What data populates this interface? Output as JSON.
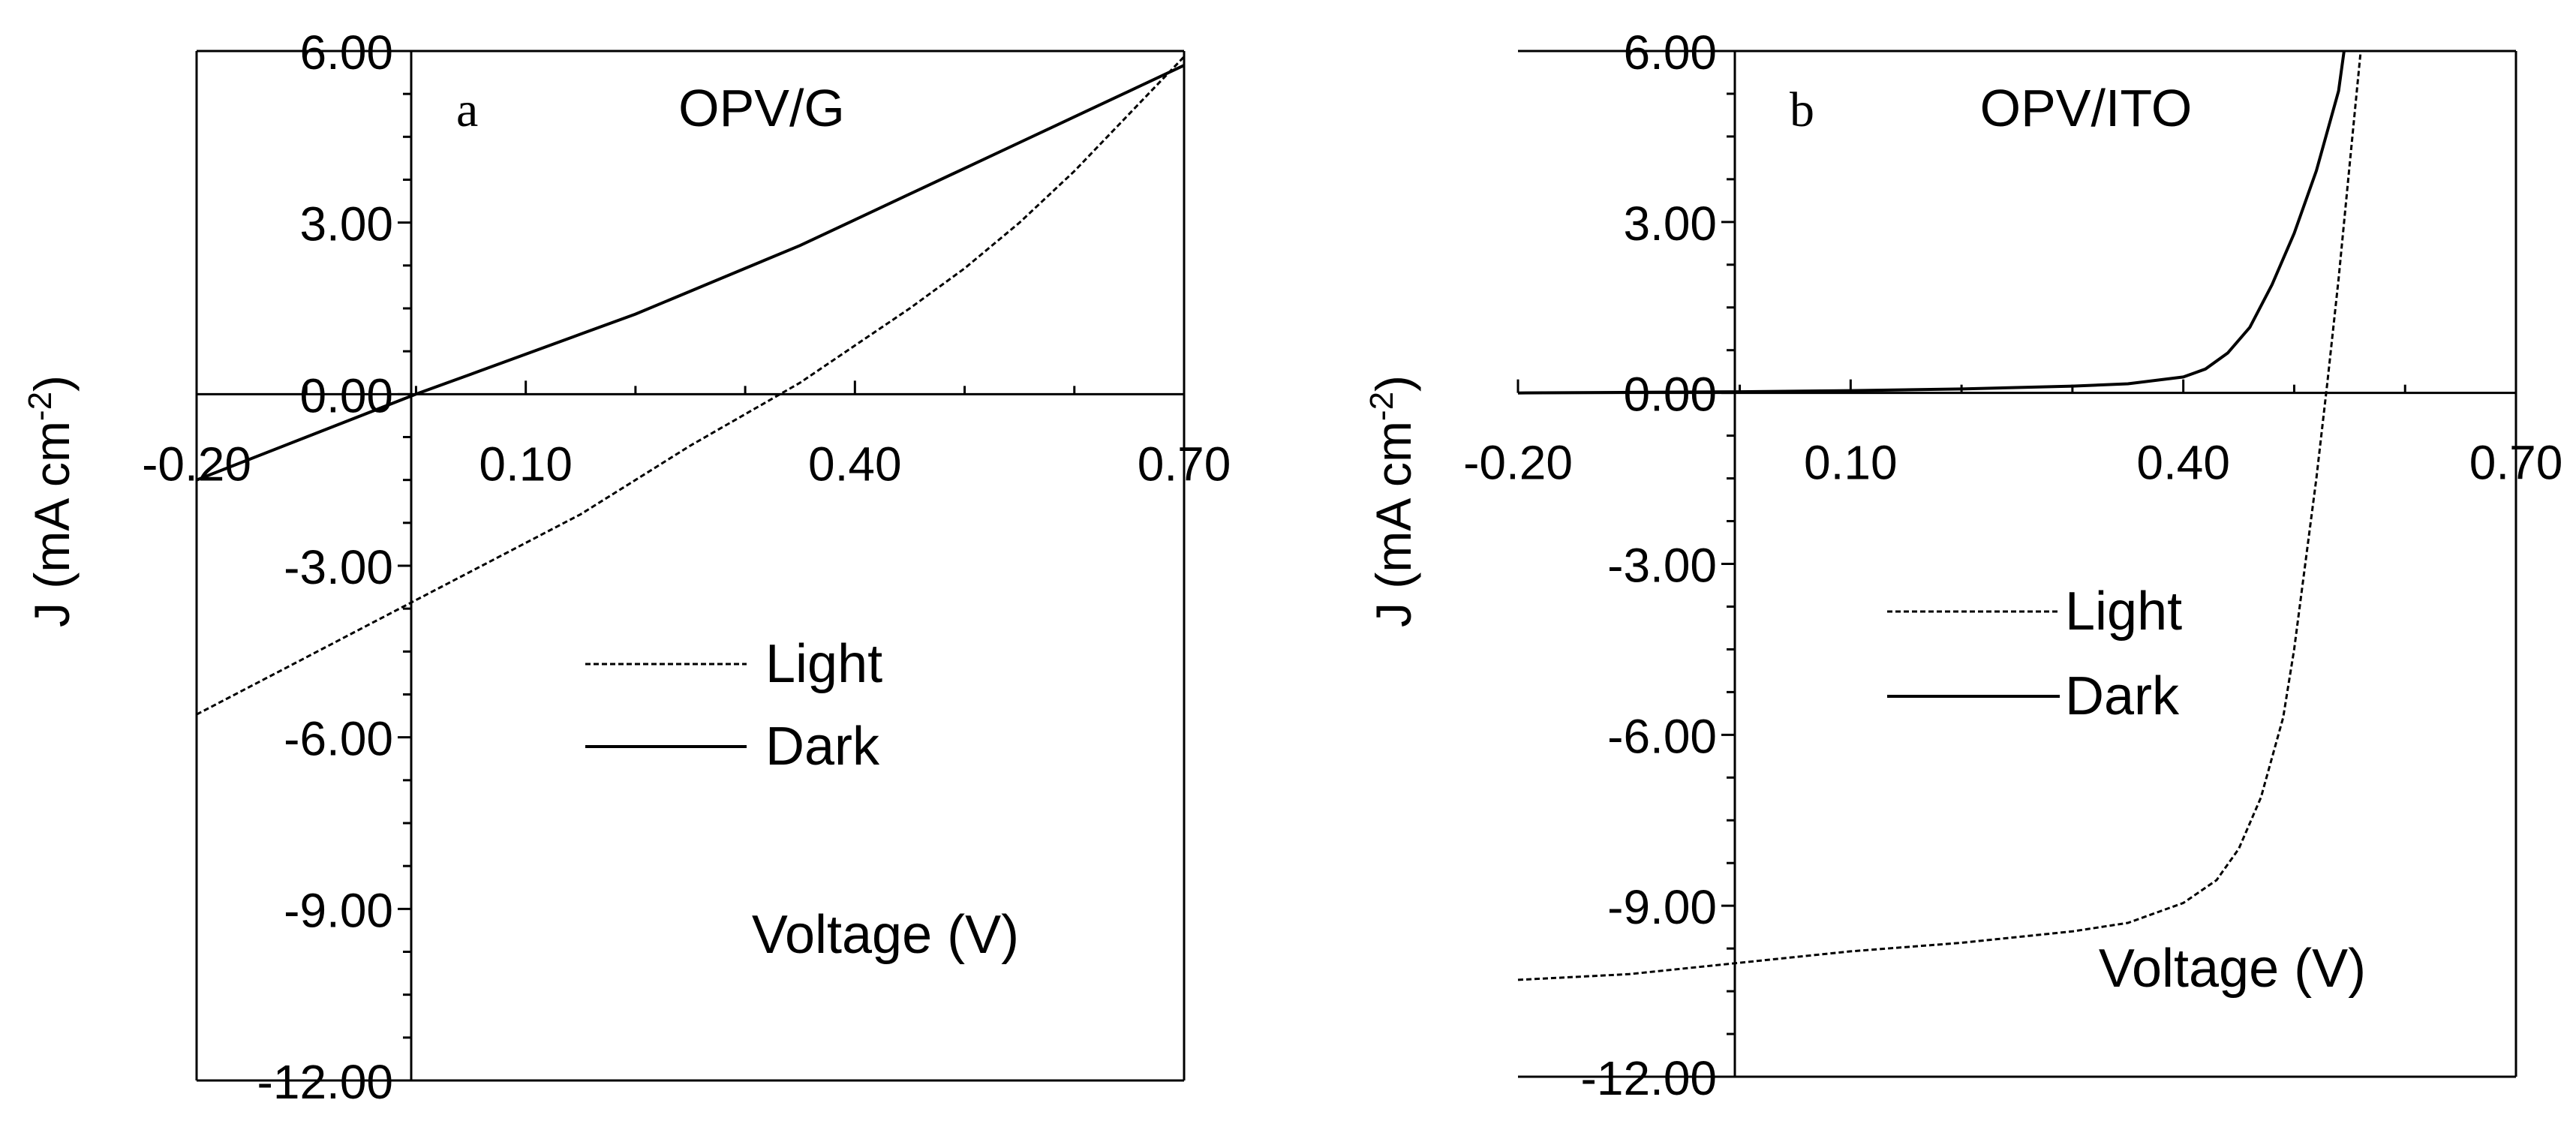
{
  "chart_data": [
    {
      "id": "a",
      "type": "line",
      "panel_letter": "a",
      "title": "OPV/G",
      "xlabel": "Voltage (V)",
      "ylabel": "J (mA cm",
      "ylabel_superscript": "-2",
      "ylabel_suffix": ")",
      "xlim": [
        -0.2,
        0.7
      ],
      "ylim": [
        -12,
        6
      ],
      "xticks": [
        "-0.20",
        "0.10",
        "0.40",
        "0.70"
      ],
      "yticks": [
        "6.00",
        "3.00",
        "0.00",
        "-3.00",
        "-6.00",
        "-9.00",
        "-12.00"
      ],
      "legend": [
        "Light",
        "Dark"
      ],
      "legend_position": "center",
      "series": [
        {
          "name": "Light",
          "style": "dashed",
          "x": [
            -0.2,
            -0.15,
            -0.1,
            -0.05,
            0.0,
            0.05,
            0.1,
            0.15,
            0.2,
            0.25,
            0.3,
            0.35,
            0.4,
            0.45,
            0.5,
            0.55,
            0.6,
            0.65,
            0.7
          ],
          "y": [
            -5.6,
            -5.1,
            -4.6,
            -4.1,
            -3.6,
            -3.1,
            -2.6,
            -2.1,
            -1.5,
            -0.9,
            -0.35,
            0.2,
            0.85,
            1.5,
            2.2,
            3.0,
            3.9,
            4.9,
            5.9
          ]
        },
        {
          "name": "Dark",
          "style": "solid",
          "x": [
            -0.2,
            -0.1,
            0.0,
            0.05,
            0.1,
            0.15,
            0.2,
            0.25,
            0.3,
            0.35,
            0.4,
            0.45,
            0.5,
            0.55,
            0.6,
            0.65,
            0.7
          ],
          "y": [
            -1.5,
            -0.75,
            0.0,
            0.35,
            0.7,
            1.05,
            1.4,
            1.8,
            2.2,
            2.6,
            3.05,
            3.5,
            3.95,
            4.4,
            4.85,
            5.3,
            5.75
          ]
        }
      ]
    },
    {
      "id": "b",
      "type": "line",
      "panel_letter": "b",
      "title": "OPV/ITO",
      "xlabel": "Voltage (V)",
      "ylabel": "J (mA cm",
      "ylabel_superscript": "-2",
      "ylabel_suffix": ")",
      "xlim": [
        -0.2,
        0.7
      ],
      "ylim": [
        -12,
        6
      ],
      "xticks": [
        "-0.20",
        "0.10",
        "0.40",
        "0.70"
      ],
      "yticks": [
        "6.00",
        "3.00",
        "0.00",
        "-3.00",
        "-6.00",
        "-9.00",
        "-12.00"
      ],
      "legend": [
        "Light",
        "Dark"
      ],
      "legend_position": "center-right",
      "series": [
        {
          "name": "Light",
          "style": "dashed",
          "x": [
            -0.2,
            -0.1,
            0.0,
            0.1,
            0.2,
            0.3,
            0.35,
            0.4,
            0.43,
            0.45,
            0.47,
            0.49,
            0.5,
            0.51,
            0.52,
            0.53,
            0.54,
            0.55,
            0.56
          ],
          "y": [
            -10.3,
            -10.2,
            -10.0,
            -9.8,
            -9.65,
            -9.45,
            -9.3,
            -8.95,
            -8.55,
            -8.0,
            -7.1,
            -5.7,
            -4.5,
            -3.0,
            -1.5,
            0.2,
            2.0,
            4.0,
            6.0
          ]
        },
        {
          "name": "Dark",
          "style": "solid",
          "x": [
            -0.2,
            -0.1,
            0.0,
            0.1,
            0.2,
            0.3,
            0.35,
            0.4,
            0.42,
            0.44,
            0.46,
            0.48,
            0.5,
            0.52,
            0.54,
            0.545
          ],
          "y": [
            0.0,
            0.01,
            0.02,
            0.04,
            0.07,
            0.12,
            0.16,
            0.28,
            0.42,
            0.7,
            1.15,
            1.9,
            2.8,
            3.9,
            5.3,
            6.0
          ]
        }
      ]
    }
  ]
}
